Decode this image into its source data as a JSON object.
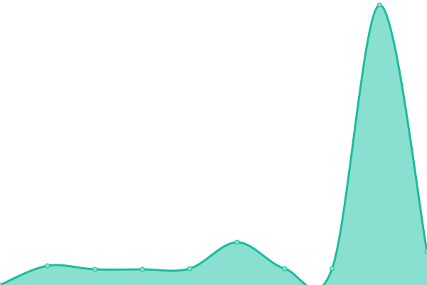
{
  "chart_data": {
    "type": "area",
    "x": [
      0,
      1,
      2,
      3,
      4,
      5,
      6,
      7,
      8,
      9
    ],
    "values": [
      0,
      27,
      22,
      22,
      23,
      60,
      23,
      23,
      393,
      47
    ],
    "ylim": [
      0,
      400
    ],
    "grid": false,
    "axes": false,
    "smooth": true,
    "colors": {
      "line": "#1abc9c",
      "fill": "#8ae0d0",
      "marker_fill": "#8ae0d0",
      "marker_stroke": "#1abc9c"
    }
  }
}
